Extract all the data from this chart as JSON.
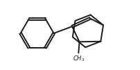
{
  "bg_color": "#ffffff",
  "line_color": "#1a1a1a",
  "line_width": 1.4,
  "figsize": [
    2.02,
    1.01
  ],
  "dpi": 100,
  "xlim": [
    -0.85,
    0.78
  ],
  "ylim": [
    -0.4,
    0.4
  ]
}
